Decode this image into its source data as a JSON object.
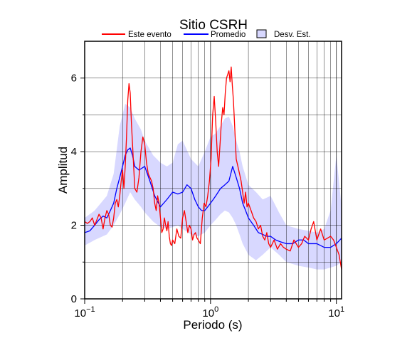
{
  "chart_data": {
    "type": "line",
    "title": "Sitio CSRH",
    "xlabel": "Periodo (s)",
    "ylabel": "Amplitud",
    "xscale": "log",
    "xlim": [
      0.1,
      11
    ],
    "ylim": [
      0,
      7
    ],
    "grid": true,
    "legend_position": "top",
    "x_ticks": [
      {
        "value": 0.1,
        "base": "10",
        "exp": "−1"
      },
      {
        "value": 1,
        "base": "10",
        "exp": "0"
      },
      {
        "value": 10,
        "base": "10",
        "exp": "1"
      }
    ],
    "y_ticks": [
      {
        "value": 0,
        "label": "0"
      },
      {
        "value": 2,
        "label": "2"
      },
      {
        "value": 4,
        "label": "4"
      },
      {
        "value": 6,
        "label": "6"
      }
    ],
    "legend": [
      {
        "label": "Este evento",
        "kind": "line",
        "color": "#ff0000"
      },
      {
        "label": "Promedio",
        "kind": "line",
        "color": "#0000ff"
      },
      {
        "label": "Desv. Est.",
        "kind": "box",
        "color": "#d8d8ff"
      }
    ],
    "band": {
      "name": "Desv. Est.",
      "color": "#d8d8ff",
      "x": [
        0.1,
        0.12,
        0.15,
        0.17,
        0.19,
        0.21,
        0.23,
        0.25,
        0.28,
        0.3,
        0.35,
        0.4,
        0.45,
        0.5,
        0.55,
        0.6,
        0.7,
        0.8,
        0.9,
        1.0,
        1.1,
        1.2,
        1.3,
        1.4,
        1.5,
        1.6,
        1.7,
        1.8,
        2.0,
        2.3,
        2.6,
        3.0,
        3.5,
        4.0,
        5.0,
        6.0,
        7.0,
        8.0,
        9.0,
        10.0,
        11.0
      ],
      "lower": [
        1.45,
        1.6,
        1.75,
        2.0,
        2.3,
        2.6,
        2.9,
        2.7,
        2.5,
        2.35,
        2.1,
        1.95,
        1.9,
        1.95,
        2.0,
        1.9,
        1.75,
        1.7,
        1.8,
        2.0,
        2.15,
        2.3,
        2.4,
        2.35,
        2.2,
        2.0,
        1.75,
        1.5,
        1.2,
        1.05,
        1.2,
        1.4,
        1.2,
        1.0,
        0.9,
        0.85,
        0.8,
        0.8,
        0.85,
        0.9,
        1.0
      ],
      "upper": [
        2.2,
        2.4,
        2.8,
        3.4,
        4.7,
        5.3,
        5.2,
        4.9,
        4.6,
        4.3,
        3.9,
        3.7,
        3.6,
        3.7,
        4.2,
        4.3,
        3.8,
        3.6,
        4.0,
        4.4,
        4.5,
        4.7,
        4.9,
        4.95,
        4.7,
        4.3,
        4.0,
        3.6,
        3.1,
        2.9,
        2.7,
        2.8,
        2.35,
        2.0,
        1.9,
        1.85,
        1.8,
        1.9,
        2.4,
        3.9,
        2.5
      ]
    },
    "series": [
      {
        "name": "Promedio",
        "color": "#0000ff",
        "x": [
          0.1,
          0.11,
          0.12,
          0.13,
          0.14,
          0.15,
          0.16,
          0.17,
          0.18,
          0.19,
          0.2,
          0.21,
          0.22,
          0.23,
          0.24,
          0.25,
          0.27,
          0.3,
          0.33,
          0.36,
          0.4,
          0.45,
          0.5,
          0.55,
          0.6,
          0.65,
          0.7,
          0.75,
          0.8,
          0.85,
          0.9,
          0.95,
          1.0,
          1.05,
          1.1,
          1.15,
          1.2,
          1.3,
          1.4,
          1.5,
          1.6,
          1.7,
          1.8,
          1.9,
          2.0,
          2.2,
          2.4,
          2.6,
          2.8,
          3.0,
          3.3,
          3.6,
          4.0,
          4.5,
          5.0,
          5.5,
          6.0,
          7.0,
          8.0,
          9.0,
          10.0,
          11.0
        ],
        "values": [
          1.8,
          1.85,
          2.0,
          2.15,
          2.25,
          2.2,
          2.4,
          2.6,
          3.0,
          3.3,
          3.6,
          3.9,
          4.05,
          4.1,
          3.9,
          3.6,
          3.5,
          3.6,
          3.2,
          2.8,
          2.5,
          2.7,
          2.9,
          2.85,
          2.9,
          3.1,
          3.0,
          2.7,
          2.5,
          2.4,
          2.4,
          2.5,
          2.6,
          2.7,
          2.8,
          2.9,
          3.0,
          3.1,
          3.2,
          3.6,
          3.3,
          3.0,
          2.6,
          2.4,
          2.2,
          2.0,
          1.8,
          1.75,
          1.7,
          1.7,
          1.6,
          1.55,
          1.5,
          1.5,
          1.6,
          1.6,
          1.5,
          1.5,
          1.4,
          1.4,
          1.5,
          1.65
        ]
      },
      {
        "name": "Este evento",
        "color": "#ff0000",
        "x": [
          0.1,
          0.105,
          0.11,
          0.115,
          0.12,
          0.125,
          0.13,
          0.135,
          0.14,
          0.145,
          0.15,
          0.155,
          0.16,
          0.165,
          0.17,
          0.175,
          0.18,
          0.185,
          0.19,
          0.195,
          0.2,
          0.205,
          0.21,
          0.215,
          0.22,
          0.225,
          0.23,
          0.235,
          0.24,
          0.245,
          0.25,
          0.26,
          0.27,
          0.28,
          0.29,
          0.3,
          0.31,
          0.32,
          0.33,
          0.34,
          0.35,
          0.36,
          0.37,
          0.38,
          0.39,
          0.4,
          0.41,
          0.42,
          0.43,
          0.44,
          0.45,
          0.46,
          0.47,
          0.48,
          0.49,
          0.5,
          0.52,
          0.54,
          0.56,
          0.58,
          0.6,
          0.62,
          0.64,
          0.66,
          0.68,
          0.7,
          0.72,
          0.74,
          0.76,
          0.78,
          0.8,
          0.83,
          0.86,
          0.89,
          0.92,
          0.95,
          0.98,
          1.01,
          1.04,
          1.07,
          1.1,
          1.13,
          1.16,
          1.19,
          1.22,
          1.25,
          1.28,
          1.31,
          1.34,
          1.37,
          1.4,
          1.43,
          1.46,
          1.49,
          1.52,
          1.55,
          1.6,
          1.65,
          1.7,
          1.75,
          1.8,
          1.85,
          1.9,
          1.95,
          2.0,
          2.1,
          2.2,
          2.3,
          2.4,
          2.5,
          2.6,
          2.7,
          2.8,
          2.9,
          3.0,
          3.2,
          3.4,
          3.6,
          3.8,
          4.0,
          4.3,
          4.6,
          5.0,
          5.3,
          5.6,
          6.0,
          6.3,
          6.6,
          7.0,
          7.5,
          8.0,
          8.5,
          9.0,
          9.5,
          10.0,
          10.5,
          11.0
        ],
        "values": [
          2.1,
          2.05,
          2.1,
          2.2,
          2.0,
          2.15,
          2.3,
          2.2,
          1.9,
          2.2,
          2.4,
          2.3,
          2.0,
          1.95,
          2.2,
          2.6,
          2.7,
          2.5,
          2.8,
          3.2,
          3.5,
          3.0,
          3.6,
          4.4,
          5.4,
          5.85,
          5.6,
          4.8,
          4.2,
          3.6,
          3.0,
          2.9,
          3.3,
          4.0,
          4.4,
          4.2,
          3.7,
          3.4,
          3.3,
          3.2,
          3.0,
          2.6,
          2.4,
          2.8,
          2.6,
          2.2,
          1.8,
          1.9,
          2.2,
          2.0,
          1.85,
          2.1,
          1.7,
          1.5,
          1.45,
          1.6,
          1.5,
          1.9,
          1.7,
          1.65,
          2.2,
          2.4,
          2.1,
          1.8,
          2.0,
          1.9,
          1.6,
          1.75,
          1.8,
          1.65,
          1.6,
          1.5,
          2.2,
          2.6,
          2.5,
          2.8,
          3.2,
          3.8,
          5.0,
          5.5,
          4.8,
          4.0,
          3.6,
          4.2,
          4.8,
          5.2,
          5.0,
          5.6,
          6.0,
          6.1,
          6.2,
          5.9,
          6.3,
          5.8,
          5.4,
          4.8,
          3.8,
          3.6,
          3.4,
          3.2,
          2.9,
          2.6,
          2.9,
          2.5,
          2.6,
          2.4,
          2.2,
          2.1,
          1.9,
          2.0,
          1.7,
          1.6,
          1.8,
          1.5,
          1.4,
          1.6,
          1.35,
          1.5,
          1.4,
          1.35,
          1.3,
          1.6,
          1.4,
          1.5,
          1.7,
          1.6,
          1.9,
          2.1,
          1.6,
          1.9,
          1.6,
          1.65,
          1.7,
          1.6,
          1.4,
          1.2,
          0.8
        ]
      }
    ]
  }
}
